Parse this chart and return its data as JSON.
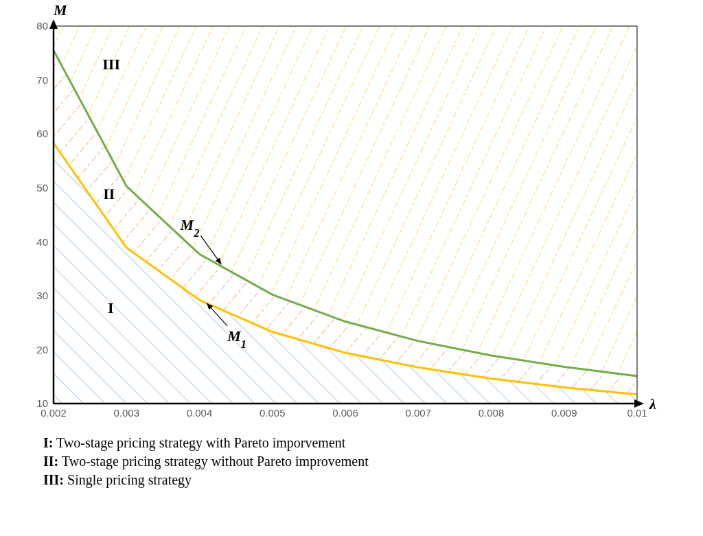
{
  "chart_data": {
    "type": "area",
    "x": [
      0.002,
      0.003,
      0.004,
      0.005,
      0.006,
      0.007,
      0.008,
      0.009,
      0.01
    ],
    "series": [
      {
        "color": "#70ad47",
        "values": [
          75.5,
          50.3,
          37.7,
          30.2,
          25.2,
          21.6,
          18.9,
          16.8,
          15.1
        ]
      },
      {
        "color": "#ffc000",
        "values": [
          58.3,
          38.9,
          29.2,
          23.3,
          19.4,
          16.7,
          14.6,
          13.0,
          11.7
        ]
      }
    ],
    "xlabel": "λ",
    "ylabel": "M",
    "xlim": [
      0.002,
      0.01
    ],
    "xticks": [
      0.002,
      0.003,
      0.004,
      0.005,
      0.006,
      0.007,
      0.008,
      0.009,
      0.01
    ],
    "ylim": [
      10,
      80
    ],
    "yticks": [
      10,
      20,
      30,
      40,
      50,
      60,
      70,
      80
    ],
    "grid": false,
    "legend": false,
    "annotations": [
      "I",
      "II",
      "III",
      {
        "text": "M$_{2}$",
        "x": 0.0043,
        "y": 35.8
      },
      {
        "text": "M$_{1}$",
        "x": 0.0041,
        "y": 28.6
      },
      "I: Two-stage pricing strategy with Pareto imporvement",
      "II: Two-stage pricing strategy without Pareto improvement",
      "III:  Single pricing strategy"
    ]
  }
}
